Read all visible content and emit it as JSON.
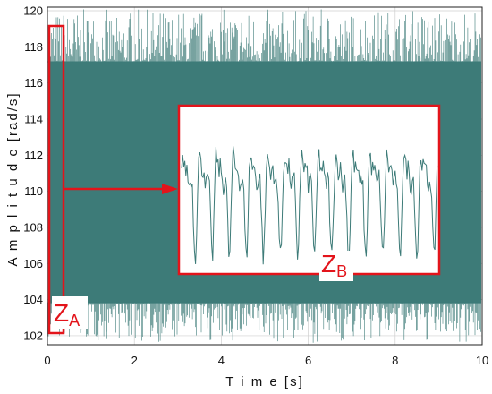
{
  "chart_data": {
    "type": "line",
    "title": "",
    "xlabel": "T i m e [s]",
    "ylabel": "A m p l i t u d e [rad/s]",
    "xlim": [
      0,
      10
    ],
    "ylim": [
      101.5,
      120.2
    ],
    "x_ticks": [
      "0",
      "2",
      "4",
      "6",
      "8",
      "10"
    ],
    "y_ticks": [
      "102",
      "104",
      "106",
      "108",
      "110",
      "112",
      "114",
      "116",
      "118",
      "120"
    ],
    "grid": true,
    "signal": {
      "color": "#3d7b78",
      "center": 110.5,
      "dense_band": [
        103.8,
        117.2
      ],
      "spike_range": [
        101.6,
        120.1
      ]
    },
    "zones": {
      "zone_a": {
        "main": "Z",
        "sub": "A",
        "time_range": [
          0,
          0.35
        ]
      },
      "zone_b": {
        "main": "Z",
        "sub": "B",
        "time_range": [
          0,
          0.35
        ]
      }
    },
    "inset": {
      "type": "line",
      "peaks": 15,
      "description_color": "#3d7b78"
    },
    "colors": {
      "highlight": "#e3141b",
      "signal": "#3d7b78",
      "grid": "#cfcfcf"
    }
  }
}
